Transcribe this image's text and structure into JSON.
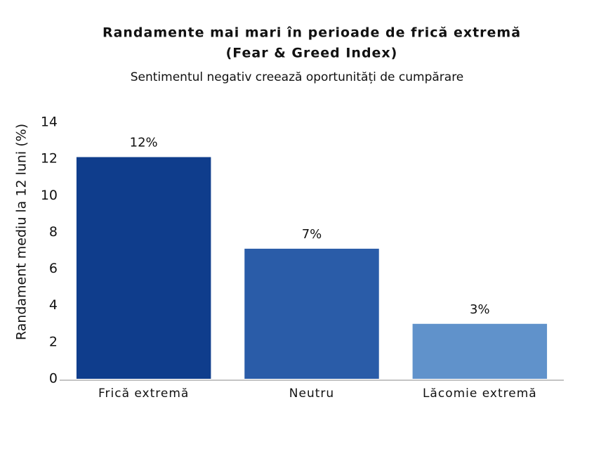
{
  "chart_data": {
    "type": "bar",
    "title": [
      "Randamente mai mari în perioade de frică extremă",
      "(Fear & Greed Index)"
    ],
    "subtitle": "Sentimentul negativ creează oportunități de cumpărare",
    "y_label": "Randament mediu la 12 luni (%)",
    "categories": [
      "Frică extremă",
      "Neutru",
      "Lăcomie extremă"
    ],
    "values": [
      12.1,
      7.1,
      3.0
    ],
    "value_labels": [
      "12%",
      "7%",
      "3%"
    ],
    "colors": [
      "#0f3d8c",
      "#2a5ca8",
      "#6092cb"
    ],
    "ylim": [
      0,
      14
    ],
    "yticks": [
      0,
      2,
      4,
      6,
      8,
      10,
      12,
      14
    ],
    "grid": false
  }
}
